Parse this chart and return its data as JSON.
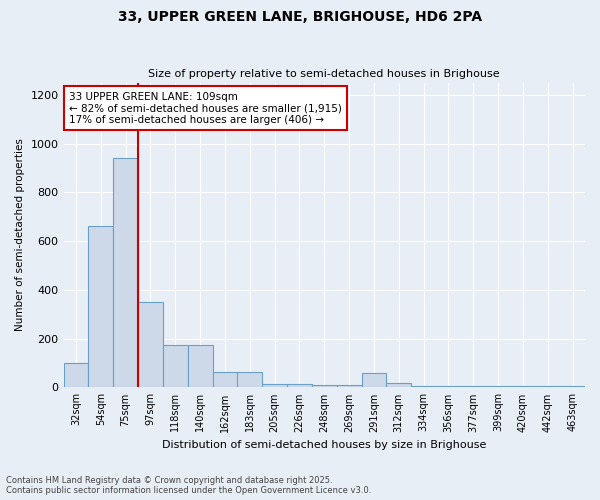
{
  "title": "33, UPPER GREEN LANE, BRIGHOUSE, HD6 2PA",
  "subtitle": "Size of property relative to semi-detached houses in Brighouse",
  "xlabel": "Distribution of semi-detached houses by size in Brighouse",
  "ylabel": "Number of semi-detached properties",
  "categories": [
    "32sqm",
    "54sqm",
    "75sqm",
    "97sqm",
    "118sqm",
    "140sqm",
    "162sqm",
    "183sqm",
    "205sqm",
    "226sqm",
    "248sqm",
    "269sqm",
    "291sqm",
    "312sqm",
    "334sqm",
    "356sqm",
    "377sqm",
    "399sqm",
    "420sqm",
    "442sqm",
    "463sqm"
  ],
  "values": [
    100,
    660,
    940,
    350,
    175,
    175,
    65,
    65,
    15,
    15,
    8,
    8,
    60,
    20,
    5,
    5,
    5,
    5,
    5,
    5,
    5
  ],
  "bar_color": "#cdd9e8",
  "bar_edge_color": "#6aa0c7",
  "annotation_title": "33 UPPER GREEN LANE: 109sqm",
  "annotation_line1": "← 82% of semi-detached houses are smaller (1,915)",
  "annotation_line2": "17% of semi-detached houses are larger (406) →",
  "vline_color": "#cc0000",
  "annotation_box_color": "#cc0000",
  "vline_x": 2.5,
  "ylim": [
    0,
    1250
  ],
  "yticks": [
    0,
    200,
    400,
    600,
    800,
    1000,
    1200
  ],
  "footnote1": "Contains HM Land Registry data © Crown copyright and database right 2025.",
  "footnote2": "Contains public sector information licensed under the Open Government Licence v3.0.",
  "bg_color": "#e8eef6",
  "plot_bg_color": "#e8eef6"
}
